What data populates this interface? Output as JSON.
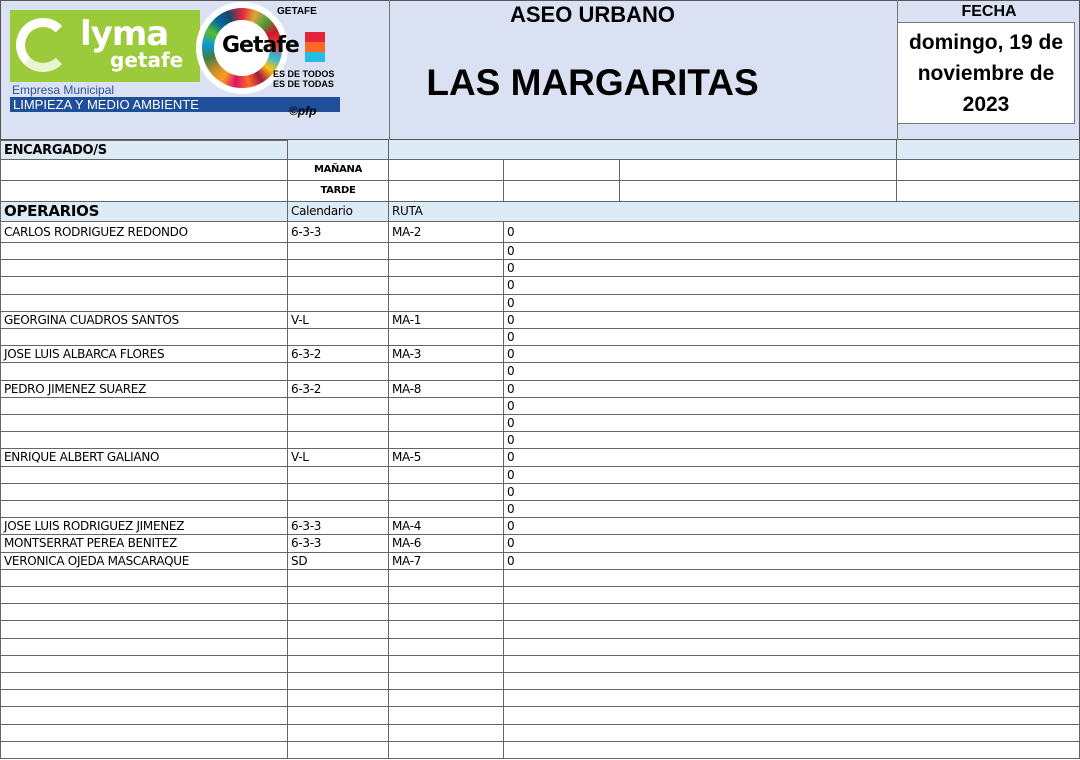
{
  "logo": {
    "brand": "lyma",
    "brand_sub": "getafe",
    "empresa": "Empresa Municipal",
    "division": "LIMPIEZA Y MEDIO AMBIENTE",
    "city_logo": "Getafe",
    "ayuntamiento": "GETAFE",
    "slogan1": "ES DE TODOS",
    "slogan2": "ES DE TODAS",
    "copyright": "©pfp"
  },
  "header": {
    "title": "ASEO URBANO",
    "subtitle": "LAS MARGARITAS",
    "date_label": "FECHA",
    "date_value": "domingo, 19 de noviembre de 2023"
  },
  "colors": {
    "header_bg": "#d9e1f2",
    "section_bg": "#ddebf7",
    "brand_green": "#9bcb3b",
    "brand_blue": "#1f4e9a"
  },
  "encargados": {
    "label": "ENCARGADO/S",
    "shifts": [
      "MAÑANA",
      "TARDE"
    ]
  },
  "operarios": {
    "label": "OPERARIOS",
    "col_calendario": "Calendario",
    "col_ruta": "RUTA",
    "rows": [
      {
        "name": "CARLOS RODRIGUEZ REDONDO",
        "cal": "6-3-3",
        "ruta": "MA-2",
        "val": "0"
      },
      {
        "name": "",
        "cal": "",
        "ruta": "",
        "val": "0"
      },
      {
        "name": "",
        "cal": "",
        "ruta": "",
        "val": "0"
      },
      {
        "name": "",
        "cal": "",
        "ruta": "",
        "val": "0"
      },
      {
        "name": "",
        "cal": "",
        "ruta": "",
        "val": "0"
      },
      {
        "name": "GEORGINA CUADROS SANTOS",
        "cal": "V-L",
        "ruta": "MA-1",
        "val": "0"
      },
      {
        "name": "",
        "cal": "",
        "ruta": "",
        "val": "0"
      },
      {
        "name": "JOSE LUIS ALBARCA FLORES",
        "cal": "6-3-2",
        "ruta": "MA-3",
        "val": "0"
      },
      {
        "name": "",
        "cal": "",
        "ruta": "",
        "val": "0"
      },
      {
        "name": "PEDRO JIMENEZ SUAREZ",
        "cal": "6-3-2",
        "ruta": "MA-8",
        "val": "0"
      },
      {
        "name": "",
        "cal": "",
        "ruta": "",
        "val": "0"
      },
      {
        "name": "",
        "cal": "",
        "ruta": "",
        "val": "0"
      },
      {
        "name": "",
        "cal": "",
        "ruta": "",
        "val": "0"
      },
      {
        "name": "ENRIQUE ALBERT GALIANO",
        "cal": "V-L",
        "ruta": "MA-5",
        "val": "0"
      },
      {
        "name": "",
        "cal": "",
        "ruta": "",
        "val": "0"
      },
      {
        "name": "",
        "cal": "",
        "ruta": "",
        "val": "0"
      },
      {
        "name": "",
        "cal": "",
        "ruta": "",
        "val": "0"
      },
      {
        "name": "JOSE LUIS RODRIGUEZ JIMENEZ",
        "cal": "6-3-3",
        "ruta": "MA-4",
        "val": "0"
      },
      {
        "name": "MONTSERRAT PEREA BENITEZ",
        "cal": "6-3-3",
        "ruta": "MA-6",
        "val": "0"
      },
      {
        "name": "VERONICA OJEDA MASCARAQUE",
        "cal": "SD",
        "ruta": "MA-7",
        "val": "0"
      },
      {
        "name": "",
        "cal": "",
        "ruta": "",
        "val": ""
      },
      {
        "name": "",
        "cal": "",
        "ruta": "",
        "val": ""
      },
      {
        "name": "",
        "cal": "",
        "ruta": "",
        "val": ""
      },
      {
        "name": "",
        "cal": "",
        "ruta": "",
        "val": ""
      },
      {
        "name": "",
        "cal": "",
        "ruta": "",
        "val": ""
      },
      {
        "name": "",
        "cal": "",
        "ruta": "",
        "val": ""
      },
      {
        "name": "",
        "cal": "",
        "ruta": "",
        "val": ""
      },
      {
        "name": "",
        "cal": "",
        "ruta": "",
        "val": ""
      },
      {
        "name": "",
        "cal": "",
        "ruta": "",
        "val": ""
      },
      {
        "name": "",
        "cal": "",
        "ruta": "",
        "val": ""
      },
      {
        "name": "",
        "cal": "",
        "ruta": "",
        "val": ""
      }
    ]
  }
}
